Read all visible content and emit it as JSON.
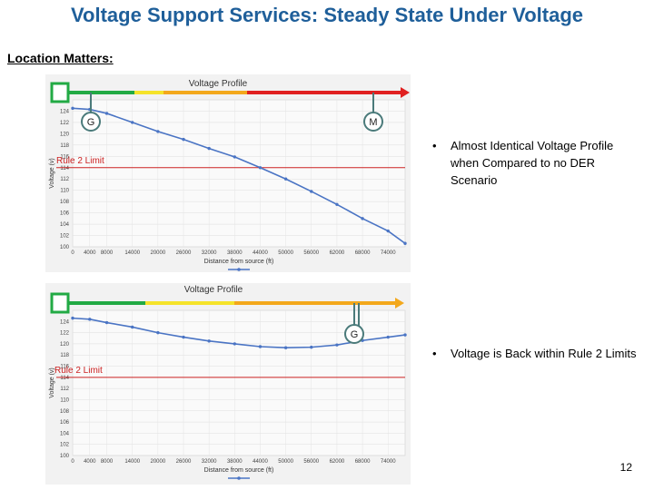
{
  "slide": {
    "title": "Voltage Support Services: Steady State Under Voltage",
    "subheading": "Location Matters:",
    "page_number": "12",
    "bullets": [
      "Almost Identical Voltage Profile when Compared to no DER Scenario",
      "Voltage is Back within Rule 2 Limits"
    ]
  },
  "markers": {
    "chart1": [
      "G",
      "M"
    ],
    "chart2": [
      "G"
    ]
  },
  "limit_label": "Rule 2 Limit",
  "colors": {
    "title": "#1f5f9a",
    "green": "#22aa44",
    "yellow": "#f5e32a",
    "orange": "#f3a81c",
    "red": "#e02020",
    "series": "#4a74c4",
    "limit": "#cc2222",
    "marker_border": "#4a7a7a",
    "plot_bg": "#f2f2f2"
  },
  "chart_data": [
    {
      "type": "line",
      "title": "Voltage Profile",
      "xlabel": "Distance from source (ft)",
      "ylabel": "Voltage (v)",
      "x_ticks": [
        "0",
        "4000",
        "8000",
        "14000",
        "20000",
        "26000",
        "32000",
        "38000",
        "44000",
        "50000",
        "56000",
        "62000",
        "68000",
        "74000"
      ],
      "y_ticks": [
        "126",
        "124",
        "122",
        "120",
        "118",
        "116",
        "114",
        "112",
        "110",
        "108",
        "106",
        "104",
        "102",
        "100"
      ],
      "xlim": [
        0,
        78000
      ],
      "ylim": [
        100,
        126
      ],
      "limit_y": 114,
      "series": [
        {
          "x": [
            0,
            4000,
            8000,
            14000,
            20000,
            26000,
            32000,
            38000,
            44000,
            50000,
            56000,
            62000,
            68000,
            74000,
            78000
          ],
          "y": [
            124.5,
            124.3,
            123.6,
            122.0,
            120.4,
            119.0,
            117.4,
            115.9,
            114.0,
            112.0,
            109.8,
            107.5,
            105.0,
            102.8,
            100.6
          ]
        }
      ],
      "arrow_segments": [
        "green",
        "yellow",
        "orange",
        "red"
      ]
    },
    {
      "type": "line",
      "title": "Voltage Profile",
      "xlabel": "Distance from source (ft)",
      "ylabel": "Voltage (v)",
      "x_ticks": [
        "0",
        "4000",
        "8000",
        "14000",
        "20000",
        "26000",
        "32000",
        "38000",
        "44000",
        "50000",
        "56000",
        "62000",
        "68000",
        "74000"
      ],
      "y_ticks": [
        "126",
        "124",
        "122",
        "120",
        "118",
        "116",
        "114",
        "112",
        "110",
        "108",
        "106",
        "104",
        "102",
        "100"
      ],
      "xlim": [
        0,
        78000
      ],
      "ylim": [
        100,
        126
      ],
      "limit_y": 114,
      "series": [
        {
          "x": [
            0,
            4000,
            8000,
            14000,
            20000,
            26000,
            32000,
            38000,
            44000,
            50000,
            56000,
            62000,
            68000,
            74000,
            78000
          ],
          "y": [
            124.6,
            124.4,
            123.8,
            123.0,
            122.0,
            121.2,
            120.5,
            120.0,
            119.5,
            119.3,
            119.4,
            119.8,
            120.6,
            121.2,
            121.6
          ]
        }
      ],
      "arrow_segments": [
        "green",
        "yellow",
        "orange"
      ]
    }
  ]
}
